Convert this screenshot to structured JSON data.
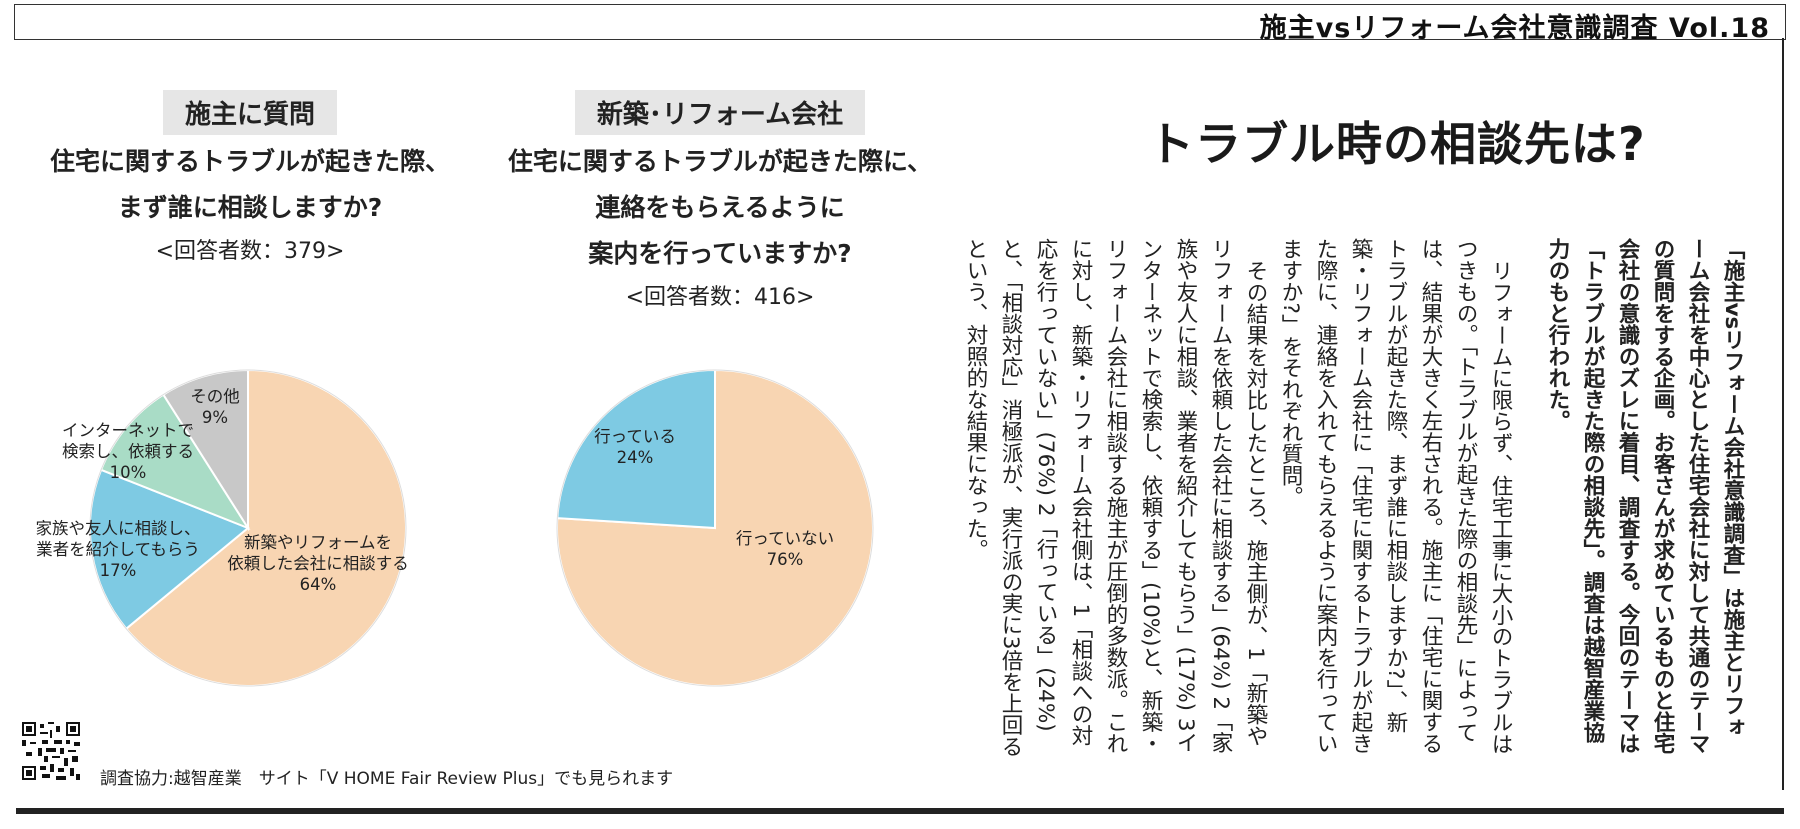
{
  "header": {
    "title": "施主vsリフォーム会社意識調査 Vol.18"
  },
  "survey_left": {
    "tag": "施主に質問",
    "question_lines": [
      "住宅に関するトラブルが起きた際、",
      "まず誰に相談しますか?"
    ],
    "respondents": "<回答者数：379>"
  },
  "survey_right": {
    "tag": "新築･リフォーム会社",
    "question_lines": [
      "住宅に関するトラブルが起きた際に、",
      "連絡をもらえるように",
      "案内を行っていますか?"
    ],
    "respondents": "<回答者数：416>"
  },
  "chart_data": [
    {
      "type": "pie",
      "title": "住宅に関するトラブルが起きた際、まず誰に相談しますか?",
      "slices": [
        {
          "label": [
            "新築やリフォームを",
            "依頼した会社に相談する"
          ],
          "value": 64,
          "display": "64%",
          "color": "#f8d5b2"
        },
        {
          "label": [
            "家族や友人に相談し、",
            "業者を紹介してもらう"
          ],
          "value": 17,
          "display": "17%",
          "color": "#7ecae3"
        },
        {
          "label": [
            "インターネットで",
            "検索し、依頼する"
          ],
          "value": 10,
          "display": "10%",
          "color": "#a9dcc6"
        },
        {
          "label": [
            "その他"
          ],
          "value": 9,
          "display": "9%",
          "color": "#c8c8c8"
        }
      ]
    },
    {
      "type": "pie",
      "title": "住宅に関するトラブルが起きた際に、連絡をもらえるように案内を行っていますか?",
      "slices": [
        {
          "label": [
            "行っていない"
          ],
          "value": 76,
          "display": "76%",
          "color": "#f8d5b2"
        },
        {
          "label": [
            "行っている"
          ],
          "value": 24,
          "display": "24%",
          "color": "#7ecae3"
        }
      ]
    }
  ],
  "headline": "トラブル時の相談先は?",
  "article": {
    "lead": "「施主vsリフォーム会社意識調査」は施主とリフォーム会社を中心とした住宅会社に対して共通のテーマの質問をする企画。お客さんが求めているものと住宅会社の意識のズレに着目、調査する。今回のテーマは「トラブルが起きた際の相談先」。調査は越智産業協力のもと行われた。",
    "para1": "リフォームに限らず、住宅工事に大小のトラブルはつきもの。「トラブルが起きた際の相談先」によっては、結果が大きく左右される。施主に「住宅に関するトラブルが起きた際、まず誰に相談しますか?」、新築・リフォーム会社に「住宅に関するトラブルが起きた際に、連絡を入れてもらえるように案内を行っていますか?」をそれぞれ質問。",
    "para2": "その結果を対比したところ、施主側が、1「新築やリフォームを依頼した会社に相談する」(64%) 2「家族や友人に相談、業者を紹介してもらう」(17%) 3インターネットで検索し、依頼する」(10%)と、新築・リフォーム会社に相談する施主が圧倒的多数派。これに対し、新築・リフォーム会社側は、1「相談への対応を行っていない」(76%) 2「行っている」(24%)と、「相談対応」消極派が、実行派の実に3倍を上回るという、対照的な結果になった。"
  },
  "footer": {
    "note": "調査協力:越智産業　サイト「V HOME Fair Review Plus」でも見られます"
  }
}
